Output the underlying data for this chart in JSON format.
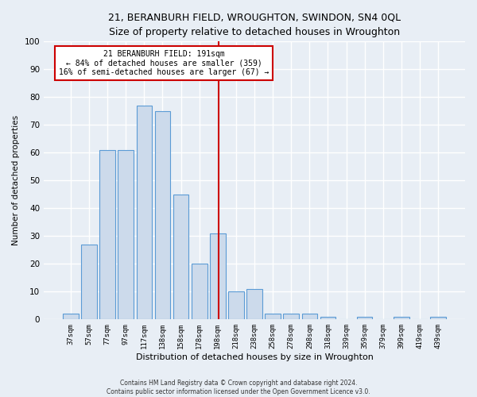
{
  "title": "21, BERANBURH FIELD, WROUGHTON, SWINDON, SN4 0QL",
  "subtitle": "Size of property relative to detached houses in Wroughton",
  "xlabel": "Distribution of detached houses by size in Wroughton",
  "ylabel": "Number of detached properties",
  "bar_color": "#ccdaeb",
  "bar_edge_color": "#5b9bd5",
  "categories": [
    "37sqm",
    "57sqm",
    "77sqm",
    "97sqm",
    "117sqm",
    "138sqm",
    "158sqm",
    "178sqm",
    "198sqm",
    "218sqm",
    "238sqm",
    "258sqm",
    "278sqm",
    "298sqm",
    "318sqm",
    "339sqm",
    "359sqm",
    "379sqm",
    "399sqm",
    "419sqm",
    "439sqm"
  ],
  "values": [
    2,
    27,
    61,
    61,
    77,
    75,
    45,
    20,
    31,
    10,
    11,
    2,
    2,
    2,
    1,
    0,
    1,
    0,
    1,
    0,
    1
  ],
  "ylim": [
    0,
    100
  ],
  "yticks": [
    0,
    10,
    20,
    30,
    40,
    50,
    60,
    70,
    80,
    90,
    100
  ],
  "vline_x": 8.05,
  "annotation_line1": "21 BERANBURH FIELD: 191sqm",
  "annotation_line2": "← 84% of detached houses are smaller (359)",
  "annotation_line3": "16% of semi-detached houses are larger (67) →",
  "annotation_box_color": "#ffffff",
  "annotation_border_color": "#cc0000",
  "footer_line1": "Contains HM Land Registry data © Crown copyright and database right 2024.",
  "footer_line2": "Contains public sector information licensed under the Open Government Licence v3.0.",
  "background_color": "#e8eef5",
  "grid_color": "#ffffff",
  "vline_color": "#cc0000"
}
